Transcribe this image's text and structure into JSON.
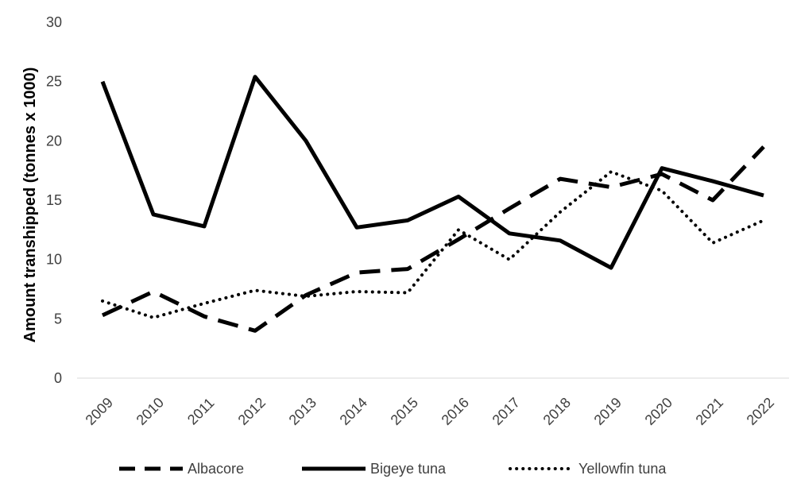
{
  "chart_data": {
    "type": "line",
    "title": "",
    "xlabel": "",
    "ylabel": "Amount transhipped (tonnes x 1000)",
    "categories": [
      "2009",
      "2010",
      "2011",
      "2012",
      "2013",
      "2014",
      "2015",
      "2016",
      "2017",
      "2018",
      "2019",
      "2020",
      "2021",
      "2022"
    ],
    "ylim": [
      0,
      30
    ],
    "yticks": [
      "0",
      "5",
      "10",
      "15",
      "20",
      "25",
      "30"
    ],
    "grid": false,
    "legend_position": "bottom",
    "series": [
      {
        "name": "Albacore",
        "style": "dashed",
        "color": "#000000",
        "values": [
          5.3,
          7.3,
          5.2,
          4.0,
          7.0,
          8.9,
          9.2,
          11.7,
          14.3,
          16.8,
          16.1,
          17.2,
          15.0,
          19.5
        ]
      },
      {
        "name": "Bigeye tuna",
        "style": "solid",
        "color": "#000000",
        "values": [
          25.0,
          13.8,
          12.8,
          25.4,
          20.0,
          12.7,
          13.3,
          15.3,
          12.2,
          11.6,
          9.3,
          17.7,
          16.6,
          15.4
        ]
      },
      {
        "name": "Yellowfin tuna",
        "style": "dotted",
        "color": "#000000",
        "values": [
          6.5,
          5.1,
          6.3,
          7.4,
          6.9,
          7.3,
          7.2,
          12.5,
          10.0,
          14.0,
          17.4,
          15.8,
          11.4,
          13.3
        ]
      }
    ]
  }
}
